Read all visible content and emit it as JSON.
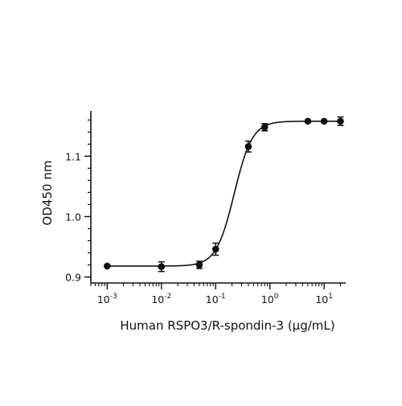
{
  "chart_data": {
    "type": "scatter",
    "title": "",
    "xlabel": "Human RSPO3/R-spondin-3 (µg/mL)",
    "ylabel": "OD450 nm",
    "xscale": "log",
    "xlim": [
      0.0005,
      25
    ],
    "ylim": [
      0.89,
      1.175
    ],
    "xticks": [
      0.001,
      0.01,
      0.1,
      1,
      10
    ],
    "xtick_labels": [
      {
        "base": "10",
        "exp": "-3"
      },
      {
        "base": "10",
        "exp": "-2"
      },
      {
        "base": "10",
        "exp": "-1"
      },
      {
        "base": "10",
        "exp": "0"
      },
      {
        "base": "10",
        "exp": "1"
      }
    ],
    "yticks": [
      0.9,
      1.0,
      1.1
    ],
    "ytick_labels": [
      "0.9",
      "1.0",
      "1.1"
    ],
    "grid": false,
    "legend": "none",
    "color": "#111111",
    "series": [
      {
        "x": [
          0.001,
          0.01,
          0.05,
          0.1,
          0.4,
          0.8,
          5,
          10,
          20
        ],
        "y": [
          0.918,
          0.917,
          0.92,
          0.946,
          1.116,
          1.148,
          1.158,
          1.158,
          1.158
        ],
        "yerr": [
          0.0,
          0.008,
          0.006,
          0.01,
          0.009,
          0.006,
          0.0,
          0.0,
          0.007
        ]
      }
    ],
    "fit_curve": {
      "model": "4PL",
      "bottom": 0.918,
      "top": 1.158,
      "ec50": 0.22,
      "hill": 2.6
    }
  }
}
